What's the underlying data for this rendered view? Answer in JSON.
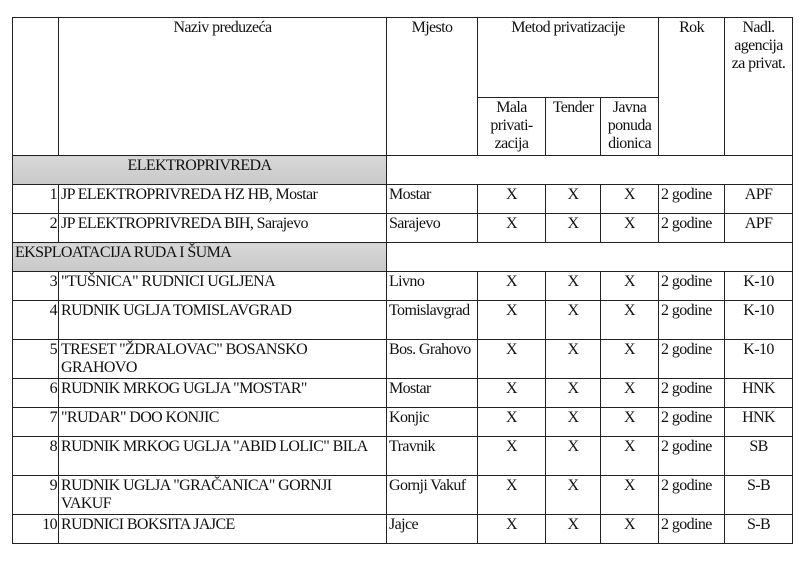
{
  "headers": {
    "num": "",
    "name": "Naziv preduzeća",
    "place": "Mjesto",
    "method": "Metod privatizacije",
    "deadline": "Rok",
    "agency": "Nadl. agencija za privat.",
    "sub": [
      "Mala privati- zacija",
      "Tender",
      "Javna ponuda dionica"
    ]
  },
  "sections": [
    {
      "title": "ELEKTROPRIVREDA",
      "rows": [
        {
          "num": "1",
          "name": "JP ELEKTROPRIVREDA HZ HB, Mostar",
          "place": "Mostar",
          "mala": "X",
          "tender": "X",
          "javna": "X",
          "rok": "2 godine",
          "agency": "APF"
        },
        {
          "num": "2",
          "name": "JP ELEKTROPRIVREDA BIH, Sarajevo",
          "place": "Sarajevo",
          "mala": "X",
          "tender": "X",
          "javna": "X",
          "rok": "2 godine",
          "agency": "APF"
        }
      ]
    },
    {
      "title": "EKSPLOATACIJA RUDA I ŠUMA",
      "rows": [
        {
          "num": "3",
          "name": "\"TUŠNICA\" RUDNICI UGLJENA",
          "place": "Livno",
          "mala": "X",
          "tender": "X",
          "javna": "X",
          "rok": "2 godine",
          "agency": "K-10"
        },
        {
          "num": "4",
          "name": "RUDNIK UGLJA TOMISLAVGRAD",
          "place": "Tomislavgrad",
          "mala": "X",
          "tender": "X",
          "javna": "X",
          "rok": "2 godine",
          "agency": "K-10"
        },
        {
          "num": "5",
          "name": "TRESET \"ŽDRALOVAC\" BOSANSKO GRAHOVO",
          "place": "Bos. Grahovo",
          "mala": "X",
          "tender": "X",
          "javna": "X",
          "rok": "2 godine",
          "agency": "K-10"
        },
        {
          "num": "6",
          "name": "RUDNIK MRKOG UGLJA \"MOSTAR\"",
          "place": "Mostar",
          "mala": "X",
          "tender": "X",
          "javna": "X",
          "rok": "2 godine",
          "agency": "HNK"
        },
        {
          "num": "7",
          "name": "\"RUDAR\" DOO KONJIC",
          "place": "Konjic",
          "mala": "X",
          "tender": "X",
          "javna": "X",
          "rok": "2 godine",
          "agency": "HNK"
        },
        {
          "num": "8",
          "name": "RUDNIK MRKOG UGLJA \"ABID LOLIC\" BILA",
          "place": "Travnik",
          "mala": "X",
          "tender": "X",
          "javna": "X",
          "rok": "2 godine",
          "agency": "SB"
        },
        {
          "num": "9",
          "name": "RUDNIK UGLJA \"GRAČANICA\" GORNJI VAKUF",
          "place": "Gornji Vakuf",
          "mala": "X",
          "tender": "X",
          "javna": "X",
          "rok": "2 godine",
          "agency": "S-B"
        },
        {
          "num": "10",
          "name": "RUDNICI BOKSITA JAJCE",
          "place": "Jajce",
          "mala": "X",
          "tender": "X",
          "javna": "X",
          "rok": "2 godine",
          "agency": "S-B"
        }
      ]
    }
  ]
}
